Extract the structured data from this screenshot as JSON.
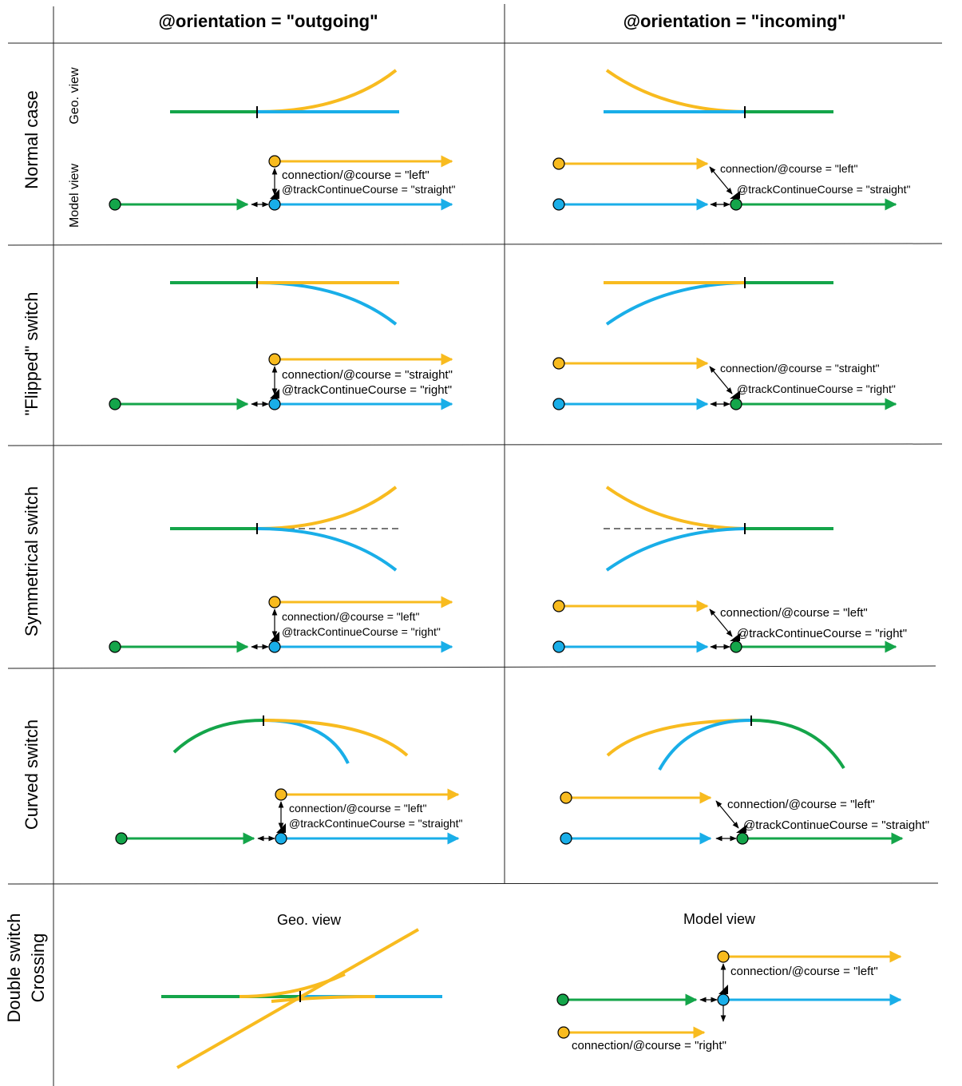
{
  "colors": {
    "green": "#14a54a",
    "blue": "#19aee8",
    "yellow": "#f8bb1f",
    "grid": "#222222",
    "dashed": "#777777"
  },
  "headers": {
    "outgoing": "@orientation = \"outgoing\"",
    "incoming": "@orientation = \"incoming\""
  },
  "rows": {
    "normal": "Normal case",
    "flipped": "\"Flipped\" switch",
    "symmetrical": "Symmetrical switch",
    "curved": "Curved switch",
    "double_line1": "Double switch",
    "double_line2": "Crossing"
  },
  "sublabels": {
    "geo": "Geo. view",
    "model": "Model view"
  },
  "annotations": {
    "normal_out_course": "connection/@course = \"left\"",
    "normal_out_track": "@trackContinueCourse = \"straight\"",
    "normal_in_course": "connection/@course = \"left\"",
    "normal_in_track": "@trackContinueCourse = \"straight\"",
    "flipped_out_course": "connection/@course = \"straight\"",
    "flipped_out_track": "@trackContinueCourse = \"right\"",
    "flipped_in_course": "connection/@course = \"straight\"",
    "flipped_in_track": "@trackContinueCourse = \"right\"",
    "sym_out_course": "connection/@course = \"left\"",
    "sym_out_track": "@trackContinueCourse = \"right\"",
    "sym_in_course": "connection/@course = \"left\"",
    "sym_in_track": "@trackContinueCourse = \"right\"",
    "curved_out_course": "connection/@course = \"left\"",
    "curved_out_track": "@trackContinueCourse = \"straight\"",
    "curved_in_course": "connection/@course = \"left\"",
    "curved_in_track": "@trackContinueCourse = \"straight\"",
    "double_course_left": "connection/@course = \"left\"",
    "double_course_right": "connection/@course = \"right\""
  },
  "captions": {
    "double_geo": "Geo. view",
    "double_model": "Model view"
  }
}
